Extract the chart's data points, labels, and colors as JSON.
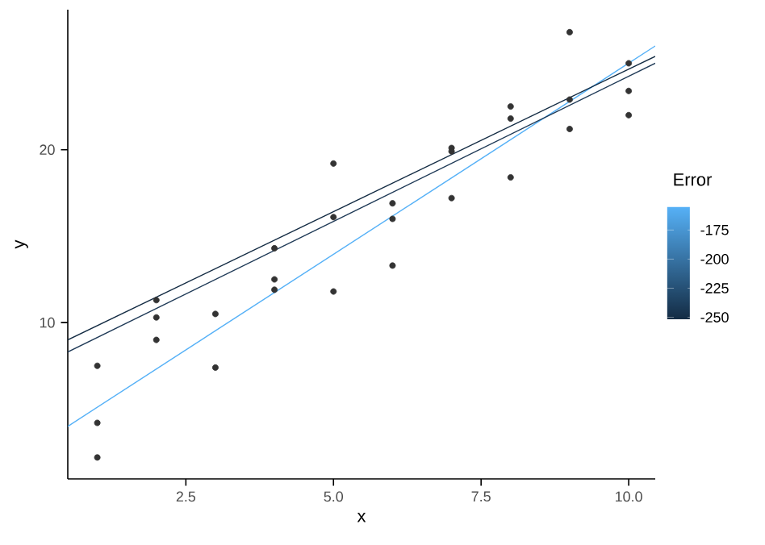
{
  "chart_data": {
    "type": "scatter",
    "xlabel": "x",
    "ylabel": "y",
    "clabel": "Error",
    "xlim": [
      0.5,
      10.45
    ],
    "ylim": [
      0.96,
      28.1
    ],
    "xticks": [
      2.5,
      {
        "value": 5,
        "label": "5.0"
      },
      7.5,
      {
        "value": 10,
        "label": "10.0"
      }
    ],
    "yticks": [
      10,
      20
    ],
    "clim": [
      -252,
      -155
    ],
    "cticks": [
      -175,
      -200,
      -225,
      -250
    ],
    "grid": false,
    "series": [
      {
        "color": "#333333",
        "x": [
          1,
          1,
          1,
          2,
          2,
          2,
          3,
          3,
          4,
          4,
          4,
          5,
          5,
          5,
          6,
          6,
          6,
          7,
          7,
          7,
          8,
          8,
          8,
          9,
          9,
          9,
          10,
          10,
          10
        ],
        "values": [
          7.5,
          4.2,
          2.2,
          11.3,
          10.3,
          9.0,
          10.5,
          7.4,
          14.3,
          12.5,
          11.9,
          19.2,
          16.1,
          11.8,
          16.9,
          16.0,
          13.3,
          20.1,
          19.9,
          17.2,
          22.5,
          21.8,
          18.4,
          26.8,
          22.9,
          21.2,
          25.0,
          23.4,
          22.0
        ]
      },
      {
        "type": "line",
        "color": "#56b1f7",
        "x": [
          0.5,
          10.45
        ],
        "values": [
          4.0,
          26.0
        ]
      },
      {
        "type": "line",
        "color": "#132b43",
        "x": [
          0.5,
          10.45
        ],
        "values": [
          9.0,
          25.4
        ]
      },
      {
        "type": "line",
        "color": "#1f3a57",
        "x": [
          0.5,
          10.45
        ],
        "values": [
          8.3,
          25.0
        ]
      }
    ]
  }
}
